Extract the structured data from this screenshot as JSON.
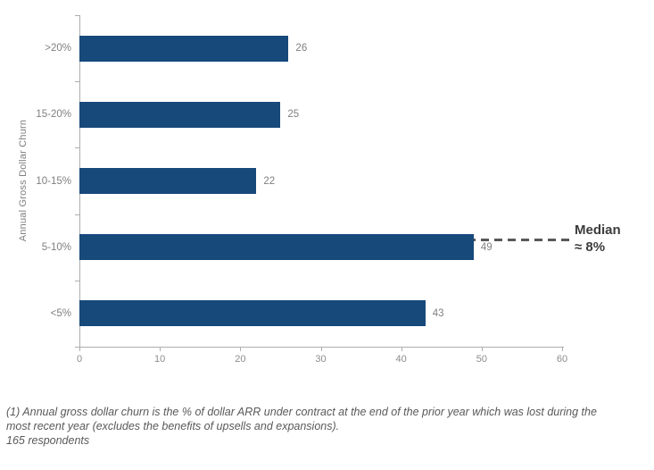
{
  "chart_data": {
    "type": "bar",
    "orientation": "horizontal",
    "title": "",
    "categories": [
      ">20%",
      "15-20%",
      "10-15%",
      "5-10%",
      "<5%"
    ],
    "values": [
      26,
      25,
      22,
      49,
      43
    ],
    "ylabel": "Annual Gross Dollar Churn",
    "xlabel": "",
    "xlim": [
      0,
      60
    ],
    "x_ticks": [
      "0",
      "10",
      "20",
      "30",
      "40",
      "50",
      "60"
    ],
    "grid": false,
    "legend": false,
    "bar_color": "#17497B",
    "value_label_color": "#808080",
    "axis_color": "#adadad",
    "median_annotation": {
      "line1": "Median",
      "line2": "≈ 8%",
      "at_category": "5-10%",
      "line_color": "#595959"
    }
  },
  "footnote": {
    "line1": "(1) Annual gross dollar churn is the % of dollar ARR under contract at the end of the prior year which was lost during the",
    "line2": "most recent year (excludes the benefits of upsells and expansions).",
    "line3": "165 respondents"
  }
}
